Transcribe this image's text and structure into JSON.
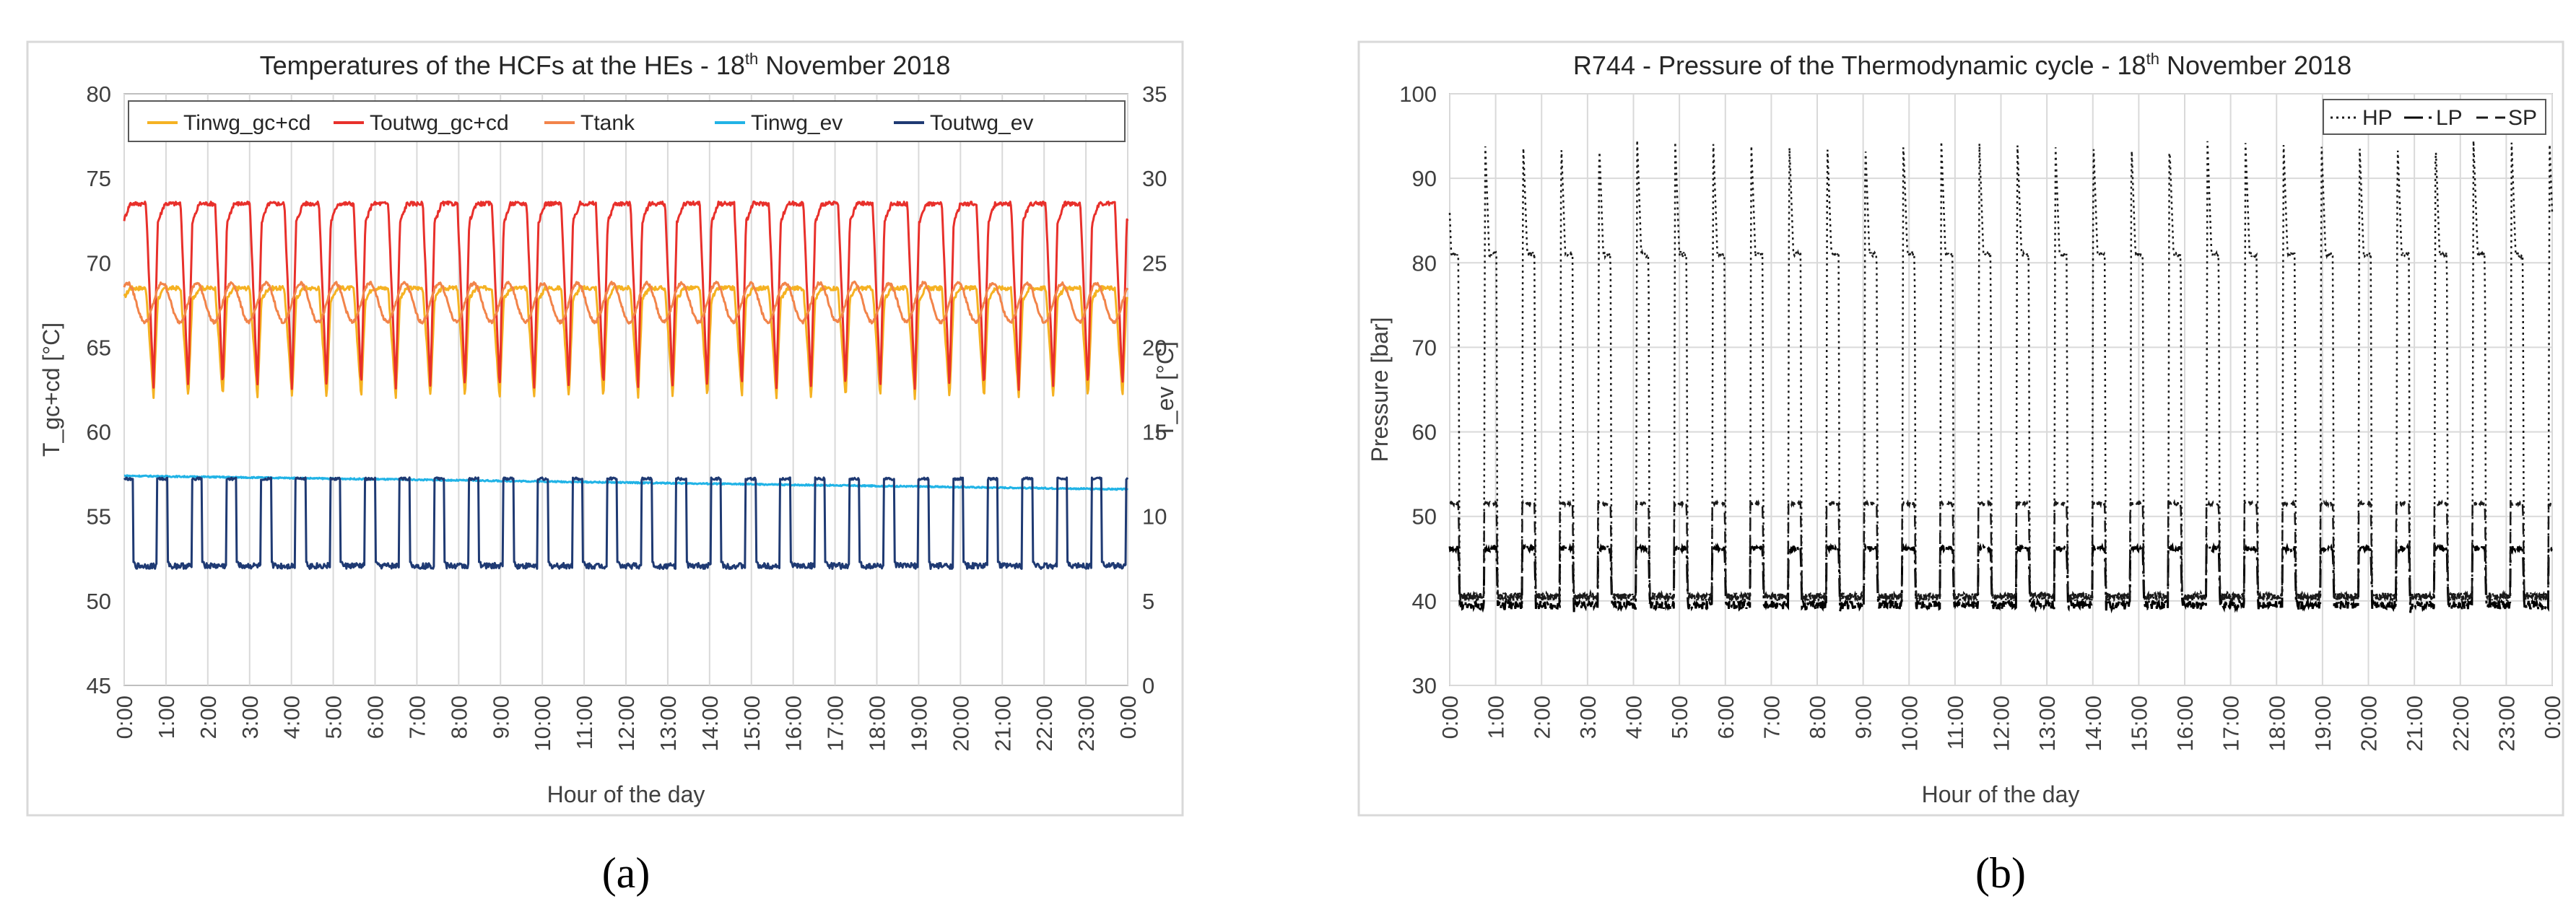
{
  "chart_data": [
    {
      "type": "line",
      "panel_label": "(a)",
      "title_main": "Temperatures of the HCFs at the HEs - 18",
      "title_sup": "th",
      "title_tail": " November 2018",
      "xlabel": "Hour of the day",
      "ylabel": "T_gc+cd [°C]",
      "y2label": "T_ev [°C]",
      "ylim": [
        45,
        80
      ],
      "y_ticks": [
        "45",
        "50",
        "55",
        "60",
        "65",
        "70",
        "75",
        "80"
      ],
      "y2lim": [
        0,
        35
      ],
      "y2_ticks": [
        "0",
        "5",
        "10",
        "15",
        "20",
        "25",
        "30",
        "35"
      ],
      "x_ticks": [
        "0:00",
        "1:00",
        "2:00",
        "3:00",
        "4:00",
        "5:00",
        "6:00",
        "7:00",
        "8:00",
        "9:00",
        "10:00",
        "11:00",
        "12:00",
        "13:00",
        "14:00",
        "15:00",
        "16:00",
        "17:00",
        "18:00",
        "19:00",
        "20:00",
        "21:00",
        "22:00",
        "23:00",
        "0:00"
      ],
      "grid": "vertical",
      "legend_position": "top",
      "cycles_per_day": 29,
      "series": [
        {
          "name": "Tinwg_gc+cd",
          "color": "#f5b222",
          "axis": "left",
          "high": 68.5,
          "low": 62.0,
          "duty": 0.78
        },
        {
          "name": "Toutwg_gc+cd",
          "color": "#e8302b",
          "axis": "left",
          "high": 73.5,
          "low": 62.5,
          "duty": 0.78
        },
        {
          "name": "Ttank",
          "color": "#f2844a",
          "axis": "left",
          "high": 68.8,
          "low": 66.5,
          "duty": 0.78
        },
        {
          "name": "Tinwg_ev",
          "color": "#21b3e6",
          "axis": "right",
          "start": 12.4,
          "end": 11.6
        },
        {
          "name": "Toutwg_ev",
          "color": "#1f3a73",
          "axis": "right",
          "high": 12.3,
          "low": 7.0,
          "duty": 0.3
        }
      ]
    },
    {
      "type": "line",
      "panel_label": "(b)",
      "title_main": "R744 - Pressure of the Thermodynamic cycle - 18",
      "title_sup": "th",
      "title_tail": " November 2018",
      "xlabel": "Hour of the day",
      "ylabel": "Pressure [bar]",
      "ylim": [
        30,
        100
      ],
      "y_ticks": [
        "30",
        "40",
        "50",
        "60",
        "70",
        "80",
        "90",
        "100"
      ],
      "x_ticks": [
        "0:00",
        "1:00",
        "2:00",
        "3:00",
        "4:00",
        "5:00",
        "6:00",
        "7:00",
        "8:00",
        "9:00",
        "10:00",
        "11:00",
        "12:00",
        "13:00",
        "14:00",
        "15:00",
        "16:00",
        "17:00",
        "18:00",
        "19:00",
        "20:00",
        "21:00",
        "22:00",
        "23:00",
        "0:00"
      ],
      "grid": "both",
      "legend_position": "top-right",
      "cycles_per_day": 29,
      "series": [
        {
          "name": "HP",
          "color": "#1a1a1a",
          "dash": "dotted",
          "peak": 94.5,
          "plateau": 81.0,
          "low": 39.0,
          "duty": 0.33
        },
        {
          "name": "LP",
          "color": "#000000",
          "dash": "long-dash-dot",
          "high": 46.5,
          "low": 38.5,
          "duty": 0.33
        },
        {
          "name": "SP",
          "color": "#1a1a1a",
          "dash": "dashed",
          "high": 51.5,
          "low": 39.5,
          "duty": 0.33
        }
      ]
    }
  ]
}
